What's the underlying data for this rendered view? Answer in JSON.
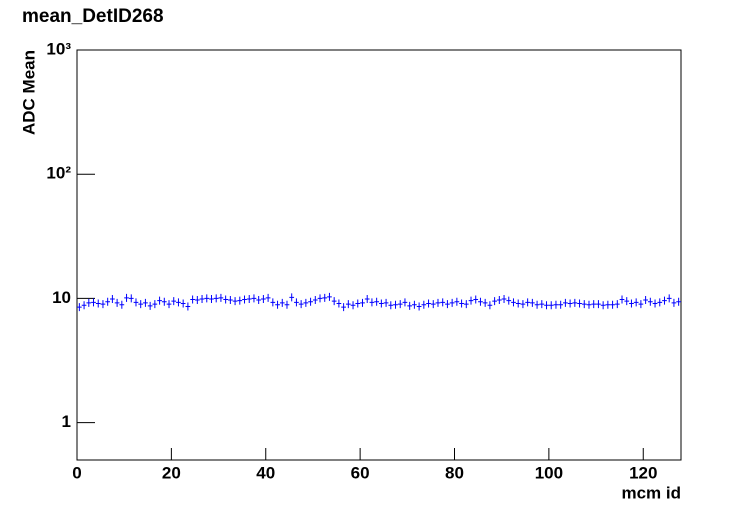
{
  "chart_data": {
    "type": "histogram",
    "title": "mean_DetID268",
    "xlabel": "mcm id",
    "ylabel": "ADC Mean",
    "log_y": true,
    "color": "#0000ff",
    "bins": [
      0,
      1,
      2,
      3,
      4,
      5,
      6,
      7,
      8,
      9,
      10,
      11,
      12,
      13,
      14,
      15,
      16,
      17,
      18,
      19,
      20,
      21,
      22,
      23,
      24,
      25,
      26,
      27,
      28,
      29,
      30,
      31,
      32,
      33,
      34,
      35,
      36,
      37,
      38,
      39,
      40,
      41,
      42,
      43,
      44,
      45,
      46,
      47,
      48,
      49,
      50,
      51,
      52,
      53,
      54,
      55,
      56,
      57,
      58,
      59,
      60,
      61,
      62,
      63,
      64,
      65,
      66,
      67,
      68,
      69,
      70,
      71,
      72,
      73,
      74,
      75,
      76,
      77,
      78,
      79,
      80,
      81,
      82,
      83,
      84,
      85,
      86,
      87,
      88,
      89,
      90,
      91,
      92,
      93,
      94,
      95,
      96,
      97,
      98,
      99,
      100,
      101,
      102,
      103,
      104,
      105,
      106,
      107,
      108,
      109,
      110,
      111,
      112,
      113,
      114,
      115,
      116,
      117,
      118,
      119,
      120,
      121,
      122,
      123,
      124,
      125,
      126,
      127,
      128
    ],
    "values": [
      8.5,
      8.8,
      9.2,
      9.3,
      9.1,
      9.0,
      9.4,
      9.9,
      9.2,
      8.9,
      10.1,
      10.0,
      9.3,
      9.0,
      9.2,
      8.7,
      9.0,
      9.6,
      9.4,
      9.0,
      9.5,
      9.3,
      9.1,
      8.6,
      9.8,
      9.7,
      9.9,
      10.0,
      9.9,
      10.0,
      10.1,
      9.8,
      9.7,
      9.5,
      9.6,
      9.8,
      9.9,
      10.0,
      9.7,
      9.9,
      10.1,
      9.3,
      8.9,
      9.2,
      8.9,
      10.2,
      9.3,
      9.0,
      9.2,
      9.4,
      9.7,
      10.0,
      10.1,
      10.3,
      9.5,
      9.1,
      8.5,
      9.0,
      8.8,
      9.1,
      9.2,
      9.9,
      9.3,
      9.4,
      9.1,
      9.2,
      8.8,
      8.9,
      9.0,
      9.3,
      8.7,
      8.9,
      8.6,
      8.9,
      9.1,
      9.0,
      9.2,
      9.3,
      9.0,
      9.2,
      9.4,
      9.1,
      9.0,
      9.6,
      9.8,
      9.4,
      9.2,
      8.8,
      9.5,
      9.7,
      9.9,
      9.6,
      9.3,
      9.1,
      9.0,
      9.3,
      9.2,
      8.9,
      9.0,
      8.8,
      8.8,
      8.9,
      8.9,
      9.2,
      9.1,
      9.2,
      9.1,
      9.0,
      8.9,
      9.0,
      9.0,
      8.8,
      8.9,
      8.9,
      9.0,
      9.8,
      9.5,
      9.1,
      9.3,
      9.0,
      9.7,
      9.4,
      9.1,
      9.3,
      9.6,
      10.0,
      9.2,
      9.4
    ],
    "xlim": [
      0,
      128
    ],
    "xticks": [
      0,
      20,
      40,
      60,
      80,
      100,
      120
    ],
    "ylim": [
      0.5,
      1000
    ],
    "yticks": [
      1,
      10,
      {
        "value": 100,
        "label": "10²"
      },
      {
        "value": 1000,
        "label": "10³"
      }
    ]
  }
}
